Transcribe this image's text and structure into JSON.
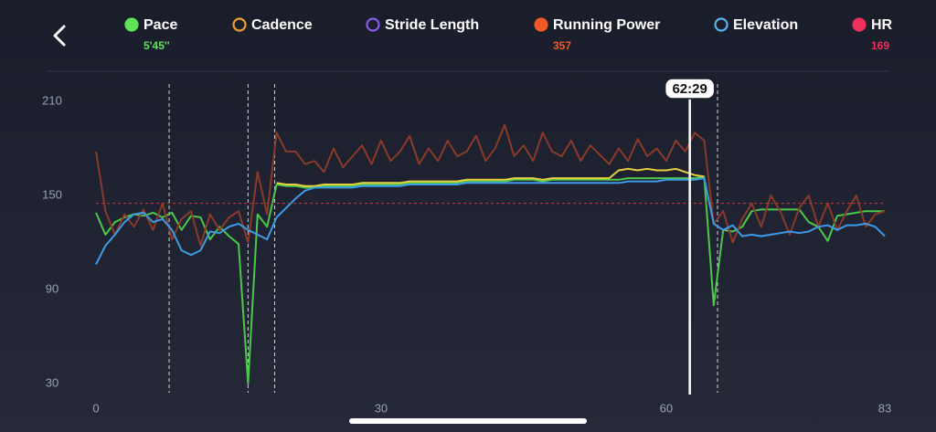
{
  "chart_data": {
    "type": "line",
    "xlim": [
      0,
      83
    ],
    "xticks": [
      0,
      30,
      60,
      83
    ],
    "ylim": [
      30,
      210
    ],
    "yticks": [
      30,
      90,
      150,
      210
    ],
    "markers": [
      7.7,
      16,
      18.8,
      65.4
    ],
    "cursor": {
      "value": 62.48,
      "label": "62:29"
    },
    "x": [
      0,
      1,
      2,
      3,
      4,
      5,
      6,
      7,
      8,
      9,
      10,
      11,
      12,
      13,
      14,
      15,
      16,
      17,
      18,
      19,
      20,
      21,
      22,
      23,
      24,
      25,
      26,
      27,
      28,
      29,
      30,
      31,
      32,
      33,
      34,
      35,
      36,
      37,
      38,
      39,
      40,
      41,
      42,
      43,
      44,
      45,
      46,
      47,
      48,
      49,
      50,
      51,
      52,
      53,
      54,
      55,
      56,
      57,
      58,
      59,
      60,
      61,
      62,
      63,
      64,
      65,
      66,
      67,
      68,
      69,
      70,
      71,
      72,
      73,
      74,
      75,
      76,
      77,
      78,
      79,
      80,
      81,
      82,
      83
    ],
    "series": [
      {
        "name": "Pace",
        "color": "#5ee35a",
        "line_color": "#4cc94a",
        "legend_filled": true,
        "value_label": "5'45''",
        "values": [
          139,
          125,
          133,
          136,
          138,
          137,
          139,
          136,
          139,
          128,
          137,
          136,
          122,
          130,
          124,
          119,
          30,
          138,
          130,
          157,
          156,
          156,
          155,
          155,
          156,
          156,
          156,
          156,
          157,
          157,
          157,
          157,
          157,
          158,
          158,
          158,
          158,
          158,
          158,
          159,
          159,
          159,
          159,
          159,
          160,
          160,
          160,
          159,
          160,
          160,
          160,
          160,
          160,
          160,
          160,
          160,
          161,
          161,
          161,
          161,
          161,
          161,
          161,
          161,
          162,
          80,
          128,
          127,
          130,
          140,
          141,
          141,
          141,
          141,
          141,
          133,
          130,
          121,
          137,
          138,
          139,
          140,
          140,
          140
        ]
      },
      {
        "name": "Cadence",
        "color": "#f0a030",
        "line_color": "#e8d040",
        "legend_filled": false,
        "values": [
          null,
          null,
          null,
          null,
          null,
          null,
          null,
          null,
          null,
          null,
          null,
          null,
          null,
          null,
          null,
          null,
          null,
          null,
          null,
          158,
          157,
          157,
          156,
          156,
          157,
          157,
          157,
          157,
          158,
          158,
          158,
          158,
          158,
          159,
          159,
          159,
          159,
          159,
          159,
          160,
          160,
          160,
          160,
          160,
          161,
          161,
          161,
          160,
          161,
          161,
          161,
          161,
          161,
          161,
          161,
          166,
          167,
          166,
          167,
          166,
          166,
          167,
          165,
          163,
          162,
          null,
          null,
          null,
          null,
          null,
          null,
          null,
          null,
          null,
          null,
          null,
          null,
          null,
          null,
          null,
          null,
          null,
          null,
          null
        ]
      },
      {
        "name": "Stride Length",
        "color": "#8a5cf0",
        "legend_filled": false
      },
      {
        "name": "Running Power",
        "color": "#f05a28",
        "line_color": "#8b3a2a",
        "legend_filled": true,
        "value_label": "357",
        "values": [
          178,
          140,
          125,
          138,
          130,
          141,
          128,
          145,
          122,
          135,
          140,
          118,
          138,
          128,
          136,
          140,
          120,
          165,
          138,
          190,
          178,
          178,
          170,
          172,
          165,
          180,
          168,
          175,
          182,
          170,
          185,
          172,
          178,
          188,
          170,
          180,
          172,
          185,
          175,
          178,
          188,
          172,
          180,
          195,
          175,
          182,
          172,
          190,
          178,
          175,
          185,
          172,
          182,
          176,
          170,
          180,
          172,
          186,
          175,
          180,
          172,
          185,
          178,
          190,
          185,
          132,
          140,
          120,
          135,
          145,
          130,
          150,
          140,
          125,
          142,
          150,
          130,
          145,
          128,
          140,
          150,
          130,
          138,
          140
        ]
      },
      {
        "name": "Elevation",
        "color": "#5ab4f0",
        "line_color": "#3d9be9",
        "legend_filled": false,
        "values": [
          106,
          118,
          125,
          133,
          138,
          139,
          133,
          135,
          128,
          115,
          112,
          115,
          127,
          126,
          130,
          132,
          128,
          125,
          122,
          136,
          142,
          148,
          153,
          155,
          155,
          155,
          155,
          155,
          156,
          156,
          156,
          156,
          156,
          157,
          157,
          157,
          157,
          157,
          157,
          158,
          158,
          158,
          158,
          158,
          158,
          158,
          158,
          158,
          158,
          158,
          158,
          158,
          158,
          158,
          158,
          158,
          159,
          159,
          159,
          159,
          160,
          160,
          160,
          160,
          161,
          132,
          128,
          131,
          124,
          125,
          124,
          125,
          126,
          127,
          126,
          127,
          130,
          131,
          128,
          131,
          131,
          132,
          130,
          124
        ]
      },
      {
        "name": "HR",
        "color": "#f0305a",
        "line_color": "#c0303a",
        "legend_filled": true,
        "value_label": "169",
        "line_value": 145
      }
    ]
  }
}
